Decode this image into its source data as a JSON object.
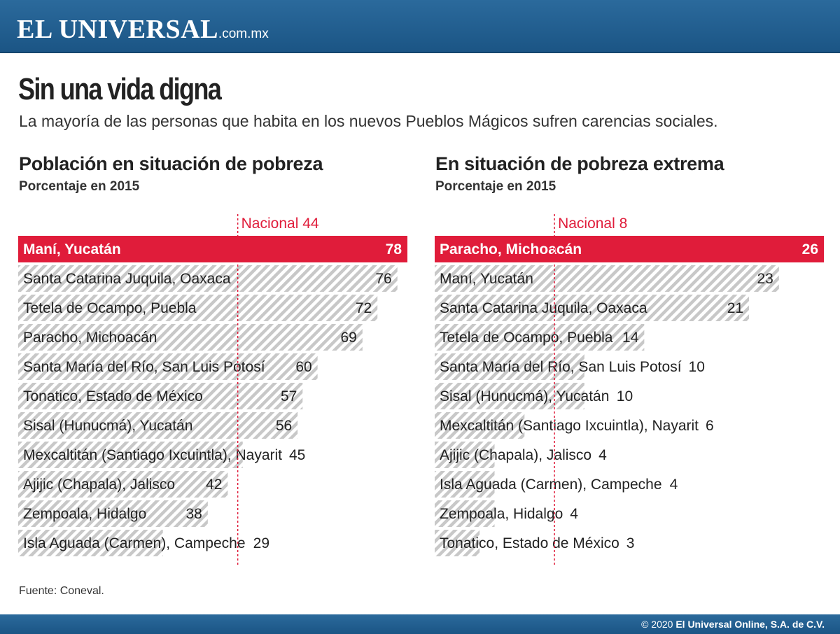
{
  "header": {
    "logo_main": "EL UNIVERSAL",
    "logo_domain": ".com.mx"
  },
  "title": "Sin una vida digna",
  "subtitle": "La mayoría de las personas que habita en los nuevos Pueblos Mágicos sufren carencias sociales.",
  "colors": {
    "highlight": "#e01c3a",
    "stripe": "#c8c8c8",
    "reference": "#e01c3a",
    "header_bg": "#1f5c8f"
  },
  "chart_data": [
    {
      "type": "bar",
      "orientation": "horizontal",
      "title": "Población en situación de pobreza",
      "unit": "Porcentaje en 2015",
      "reference_label": "Nacional 44",
      "reference_value": 44,
      "xlim": [
        0,
        78
      ],
      "highlight_index": 0,
      "categories": [
        "Maní, Yucatán",
        "Santa Catarina Juquila, Oaxaca",
        "Tetela de Ocampo, Puebla",
        "Paracho, Michoacán",
        "Santa María del Río, San Luis Potosí",
        "Tonatico, Estado de México",
        "Sisal (Hunucmá), Yucatán",
        "Mexcaltitán (Santiago Ixcuintla), Nayarit",
        "Ajijic (Chapala), Jalisco",
        "Zempoala, Hidalgo",
        "Isla Aguada (Carmen), Campeche"
      ],
      "values": [
        78,
        76,
        72,
        69,
        60,
        57,
        56,
        45,
        42,
        38,
        29
      ]
    },
    {
      "type": "bar",
      "orientation": "horizontal",
      "title": "En situación de pobreza extrema",
      "unit": "Porcentaje en 2015",
      "reference_label": "Nacional 8",
      "reference_value": 8,
      "xlim": [
        0,
        26
      ],
      "highlight_index": 0,
      "categories": [
        "Paracho, Michoacán",
        "Maní, Yucatán",
        "Santa Catarina Juquila, Oaxaca",
        "Tetela de Ocampo, Puebla",
        "Santa María del Río, San Luis Potosí",
        "Sisal (Hunucmá), Yucatán",
        "Mexcaltitán (Santiago Ixcuintla), Nayarit",
        "Ajijic (Chapala), Jalisco",
        "Isla Aguada (Carmen), Campeche",
        "Zempoala, Hidalgo",
        "Tonatico, Estado de México"
      ],
      "values": [
        26,
        23,
        21,
        14,
        10,
        10,
        6,
        4,
        4,
        4,
        3
      ]
    }
  ],
  "source": "Fuente: Coneval.",
  "footer": {
    "copyright_symbol": "© 2020",
    "copyright_owner": "El Universal Online, S.A. de C.V."
  }
}
